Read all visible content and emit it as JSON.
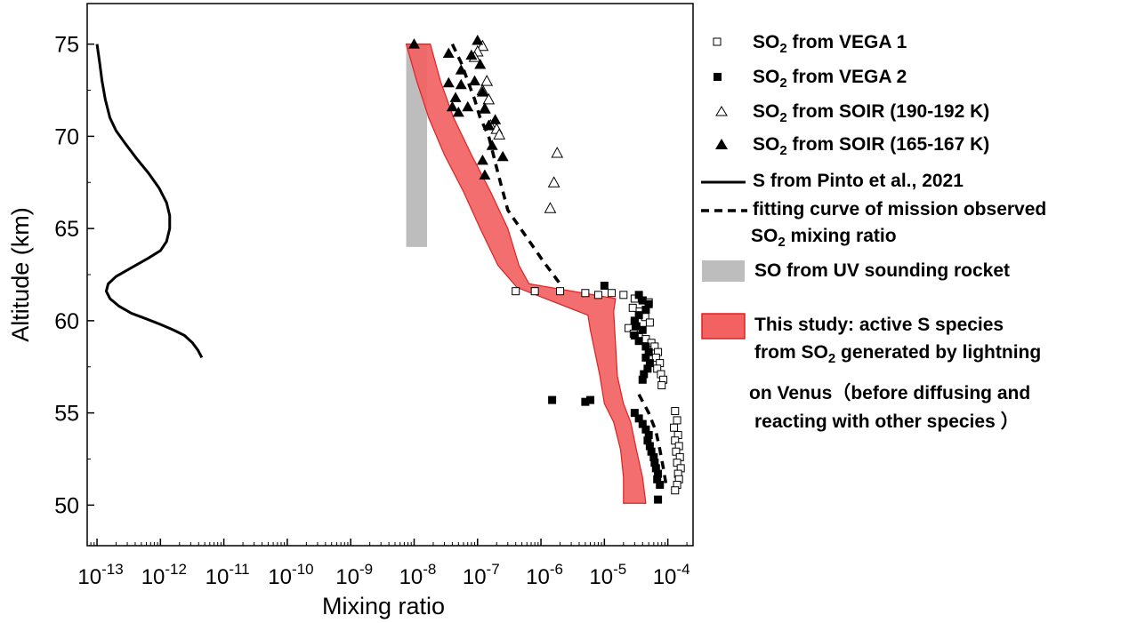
{
  "chart_data": {
    "type": "scatter",
    "xscale": "log",
    "xlabel": "Mixing ratio",
    "ylabel": "Altitude (km)",
    "xlim": [
      7e-14,
      0.00025
    ],
    "ylim": [
      47.8,
      77.2
    ],
    "xticks": [
      "10-13",
      "10-12",
      "10-11",
      "10-10",
      "10-9",
      "10-8",
      "10-7",
      "10-6",
      "10-5",
      "10-4"
    ],
    "yticks": [
      50,
      55,
      60,
      65,
      70,
      75
    ],
    "series": [
      {
        "name": "SO2 from VEGA 1",
        "kind": "scatter",
        "marker": "open-square",
        "points": [
          [
            4e-07,
            61.6
          ],
          [
            8e-07,
            61.6
          ],
          [
            2e-06,
            61.6
          ],
          [
            5e-06,
            61.5
          ],
          [
            8e-06,
            61.4
          ],
          [
            1.3e-05,
            61.5
          ],
          [
            2e-05,
            61.4
          ],
          [
            3e-05,
            61.2
          ],
          [
            4e-05,
            61.1
          ],
          [
            5e-05,
            61.0
          ],
          [
            2.8e-05,
            60.7
          ],
          [
            3.6e-05,
            60.5
          ],
          [
            4.4e-05,
            60.2
          ],
          [
            5.2e-05,
            59.9
          ],
          [
            3e-05,
            59.9
          ],
          [
            2.4e-05,
            59.6
          ],
          [
            2.9e-05,
            59.3
          ],
          [
            3.5e-05,
            59.1
          ],
          [
            4.5e-05,
            59.0
          ],
          [
            5.5e-05,
            58.8
          ],
          [
            6.2e-05,
            58.6
          ],
          [
            7e-05,
            58.3
          ],
          [
            6.5e-05,
            58.0
          ],
          [
            7.5e-05,
            57.7
          ],
          [
            6.8e-05,
            57.4
          ],
          [
            7.8e-05,
            57.1
          ],
          [
            8.5e-05,
            56.8
          ],
          [
            8e-05,
            56.5
          ],
          [
            0.00013,
            55.1
          ],
          [
            0.00014,
            54.6
          ],
          [
            0.000125,
            54.2
          ],
          [
            0.000145,
            53.8
          ],
          [
            0.00013,
            53.5
          ],
          [
            0.00015,
            53.2
          ],
          [
            0.000135,
            52.9
          ],
          [
            0.000155,
            52.6
          ],
          [
            0.00014,
            52.3
          ],
          [
            0.00016,
            52.0
          ],
          [
            0.000145,
            51.7
          ],
          [
            0.00015,
            51.4
          ],
          [
            0.00014,
            51.1
          ],
          [
            0.00013,
            50.8
          ]
        ]
      },
      {
        "name": "SO2 from VEGA 2",
        "kind": "scatter",
        "marker": "filled-square",
        "points": [
          [
            1e-05,
            61.9
          ],
          [
            3.5e-05,
            61.4
          ],
          [
            4e-05,
            61.1
          ],
          [
            5e-05,
            60.9
          ],
          [
            4.5e-05,
            60.6
          ],
          [
            3.5e-05,
            60.3
          ],
          [
            3e-05,
            60.0
          ],
          [
            3.2e-05,
            59.7
          ],
          [
            4e-05,
            59.5
          ],
          [
            3e-05,
            59.2
          ],
          [
            3.5e-05,
            58.9
          ],
          [
            4.5e-05,
            58.6
          ],
          [
            5e-05,
            58.3
          ],
          [
            4.5e-05,
            58.0
          ],
          [
            5.2e-05,
            57.7
          ],
          [
            4.8e-05,
            57.4
          ],
          [
            4.2e-05,
            57.1
          ],
          [
            4e-05,
            56.8
          ],
          [
            1.5e-06,
            55.7
          ],
          [
            5e-06,
            55.6
          ],
          [
            6e-06,
            55.7
          ],
          [
            3e-05,
            55.0
          ],
          [
            3.5e-05,
            54.7
          ],
          [
            4e-05,
            54.4
          ],
          [
            4.5e-05,
            54.1
          ],
          [
            5e-05,
            53.8
          ],
          [
            4.8e-05,
            53.5
          ],
          [
            5.2e-05,
            53.2
          ],
          [
            5.5e-05,
            52.9
          ],
          [
            6e-05,
            52.6
          ],
          [
            6.2e-05,
            52.3
          ],
          [
            6.5e-05,
            52.0
          ],
          [
            7e-05,
            51.7
          ],
          [
            6.8e-05,
            51.4
          ],
          [
            7.5e-05,
            51.1
          ],
          [
            7e-05,
            50.3
          ]
        ]
      },
      {
        "name": "SO2 from SOIR (190-192 K)",
        "kind": "scatter",
        "marker": "open-triangle",
        "points": [
          [
            1.2e-07,
            74.9
          ],
          [
            1e-07,
            74.6
          ],
          [
            9e-08,
            74.3
          ],
          [
            1.4e-07,
            73.0
          ],
          [
            1.2e-07,
            72.5
          ],
          [
            1.5e-07,
            72.0
          ],
          [
            1.3e-07,
            71.5
          ],
          [
            1.6e-07,
            70.6
          ],
          [
            2e-07,
            70.4
          ],
          [
            2.2e-07,
            70.1
          ],
          [
            1.8e-06,
            69.1
          ],
          [
            1.6e-06,
            67.5
          ],
          [
            1.4e-06,
            66.1
          ]
        ]
      },
      {
        "name": "SO2 from SOIR (165-167 K)",
        "kind": "scatter",
        "marker": "filled-triangle",
        "points": [
          [
            1e-08,
            75.0
          ],
          [
            1e-07,
            75.2
          ],
          [
            3.5e-08,
            74.5
          ],
          [
            8e-08,
            74.4
          ],
          [
            5.5e-08,
            73.6
          ],
          [
            1.1e-07,
            73.9
          ],
          [
            3.5e-08,
            72.9
          ],
          [
            5.5e-08,
            72.8
          ],
          [
            9e-08,
            73.0
          ],
          [
            4.5e-08,
            72.1
          ],
          [
            1.2e-07,
            72.4
          ],
          [
            4e-08,
            71.6
          ],
          [
            5e-08,
            71.3
          ],
          [
            7e-08,
            71.6
          ],
          [
            1.3e-07,
            71.5
          ],
          [
            1.5e-07,
            70.6
          ],
          [
            1.9e-07,
            70.9
          ],
          [
            1.7e-07,
            69.5
          ],
          [
            2.5e-07,
            68.9
          ],
          [
            1.2e-07,
            68.7
          ],
          [
            1.3e-07,
            67.9
          ]
        ]
      },
      {
        "name": "S from Pinto et al., 2021",
        "kind": "line",
        "style": "solid",
        "points": [
          [
            1e-13,
            75.0
          ],
          [
            1.1e-13,
            74.0
          ],
          [
            1.2e-13,
            73.0
          ],
          [
            1.35e-13,
            72.0
          ],
          [
            1.6e-13,
            71.0
          ],
          [
            2e-13,
            70.3
          ],
          [
            2.8e-13,
            69.6
          ],
          [
            4.2e-13,
            68.8
          ],
          [
            6.5e-13,
            68.0
          ],
          [
            9.5e-13,
            67.2
          ],
          [
            1.25e-12,
            66.4
          ],
          [
            1.4e-12,
            65.7
          ],
          [
            1.4e-12,
            65.0
          ],
          [
            1.25e-12,
            64.3
          ],
          [
            1e-12,
            63.8
          ],
          [
            6.5e-13,
            63.4
          ],
          [
            3.6e-13,
            62.9
          ],
          [
            2e-13,
            62.4
          ],
          [
            1.5e-13,
            62.0
          ],
          [
            1.4e-13,
            61.6
          ],
          [
            1.6e-13,
            61.2
          ],
          [
            2.2e-13,
            60.8
          ],
          [
            3.5e-13,
            60.4
          ],
          [
            6e-13,
            60.1
          ],
          [
            1e-12,
            59.8
          ],
          [
            1.6e-12,
            59.5
          ],
          [
            2.4e-12,
            59.2
          ],
          [
            3.2e-12,
            58.8
          ],
          [
            3.9e-12,
            58.4
          ],
          [
            4.5e-12,
            58.0
          ]
        ]
      },
      {
        "name": "fitting curve of mission observed SO2 mixing ratio",
        "kind": "line",
        "style": "dashed",
        "points": [
          [
            4e-08,
            75.0
          ],
          [
            5.5e-08,
            74.0
          ],
          [
            7e-08,
            73.0
          ],
          [
            9e-08,
            72.0
          ],
          [
            1.1e-07,
            71.0
          ],
          [
            1.5e-07,
            70.0
          ],
          [
            2.1e-07,
            68.0
          ],
          [
            3e-07,
            66.0
          ],
          [
            6e-07,
            64.5
          ],
          [
            1.1e-06,
            63.2
          ],
          [
            2e-06,
            62.0
          ]
        ],
        "points2": [
          [
            3.5e-05,
            56.0
          ],
          [
            5e-05,
            55.0
          ],
          [
            6.5e-05,
            54.0
          ],
          [
            7.5e-05,
            53.0
          ],
          [
            8.5e-05,
            52.0
          ],
          [
            9.5e-05,
            51.0
          ]
        ]
      },
      {
        "name": "SO from UV sounding rocket",
        "kind": "band",
        "color": "#bdbdbd",
        "x_range": [
          7.5e-09,
          1.6e-08
        ],
        "y_range": [
          64.0,
          75.0
        ]
      },
      {
        "name": "This study: active S species from SO2 generated by lightning on Venus (before diffusing and reacting with other species)",
        "kind": "band",
        "color": "#ee3333",
        "lower": [
          [
            7.5e-09,
            75.0
          ],
          [
            1.1e-08,
            73.0
          ],
          [
            1.7e-08,
            71.0
          ],
          [
            3e-08,
            69.0
          ],
          [
            6e-08,
            67.0
          ],
          [
            1.1e-07,
            65.0
          ],
          [
            2.1e-07,
            63.0
          ],
          [
            4.2e-07,
            61.8
          ],
          [
            5.5e-06,
            60.3
          ],
          [
            6e-06,
            59.5
          ],
          [
            8.5e-06,
            57.0
          ],
          [
            1e-05,
            55.5
          ],
          [
            1.4e-05,
            54.5
          ],
          [
            1.8e-05,
            53.0
          ],
          [
            2e-05,
            51.5
          ],
          [
            2e-05,
            50.1
          ]
        ],
        "upper": [
          [
            1.8e-08,
            75.0
          ],
          [
            2.6e-08,
            73.0
          ],
          [
            4.2e-08,
            71.0
          ],
          [
            8e-08,
            69.0
          ],
          [
            1.6e-07,
            67.0
          ],
          [
            3e-07,
            65.0
          ],
          [
            4.5e-07,
            63.0
          ],
          [
            6.5e-07,
            62.0
          ],
          [
            1.5e-05,
            61.2
          ],
          [
            1.4e-05,
            60.5
          ],
          [
            1.6e-05,
            57.0
          ],
          [
            2e-05,
            55.5
          ],
          [
            2.6e-05,
            54.5
          ],
          [
            3.2e-05,
            53.0
          ],
          [
            4e-05,
            51.5
          ],
          [
            4.5e-05,
            50.1
          ]
        ]
      }
    ]
  },
  "legend": {
    "vega1": {
      "pre": "SO",
      "sub": "2",
      "post": " from VEGA 1"
    },
    "vega2": {
      "pre": "SO",
      "sub": "2",
      "post": " from VEGA 2"
    },
    "soir190": {
      "pre": "SO",
      "sub": "2",
      "post": " from SOIR (190-192 K)"
    },
    "soir165": {
      "pre": "SO",
      "sub": "2",
      "post": " from SOIR (165-167 K)"
    },
    "pinto": "S from Pinto et al., 2021",
    "fit_line1": "fitting curve of mission observed",
    "fit_line2_pre": "SO",
    "fit_line2_sub": "2",
    "fit_line2_post": " mixing ratio",
    "rocket": "SO from UV sounding rocket",
    "study_line1": "This study: active S species",
    "study_line2_pre": " from  SO",
    "study_line2_sub": "2",
    "study_line2_post": " generated by  lightning",
    "study_line3": "on Venus（before diffusing and",
    "study_line4": " reacting with other species ）"
  },
  "colors": {
    "study_band": "#ee3333",
    "rocket_band": "#bdbdbd",
    "ink": "#000000"
  }
}
